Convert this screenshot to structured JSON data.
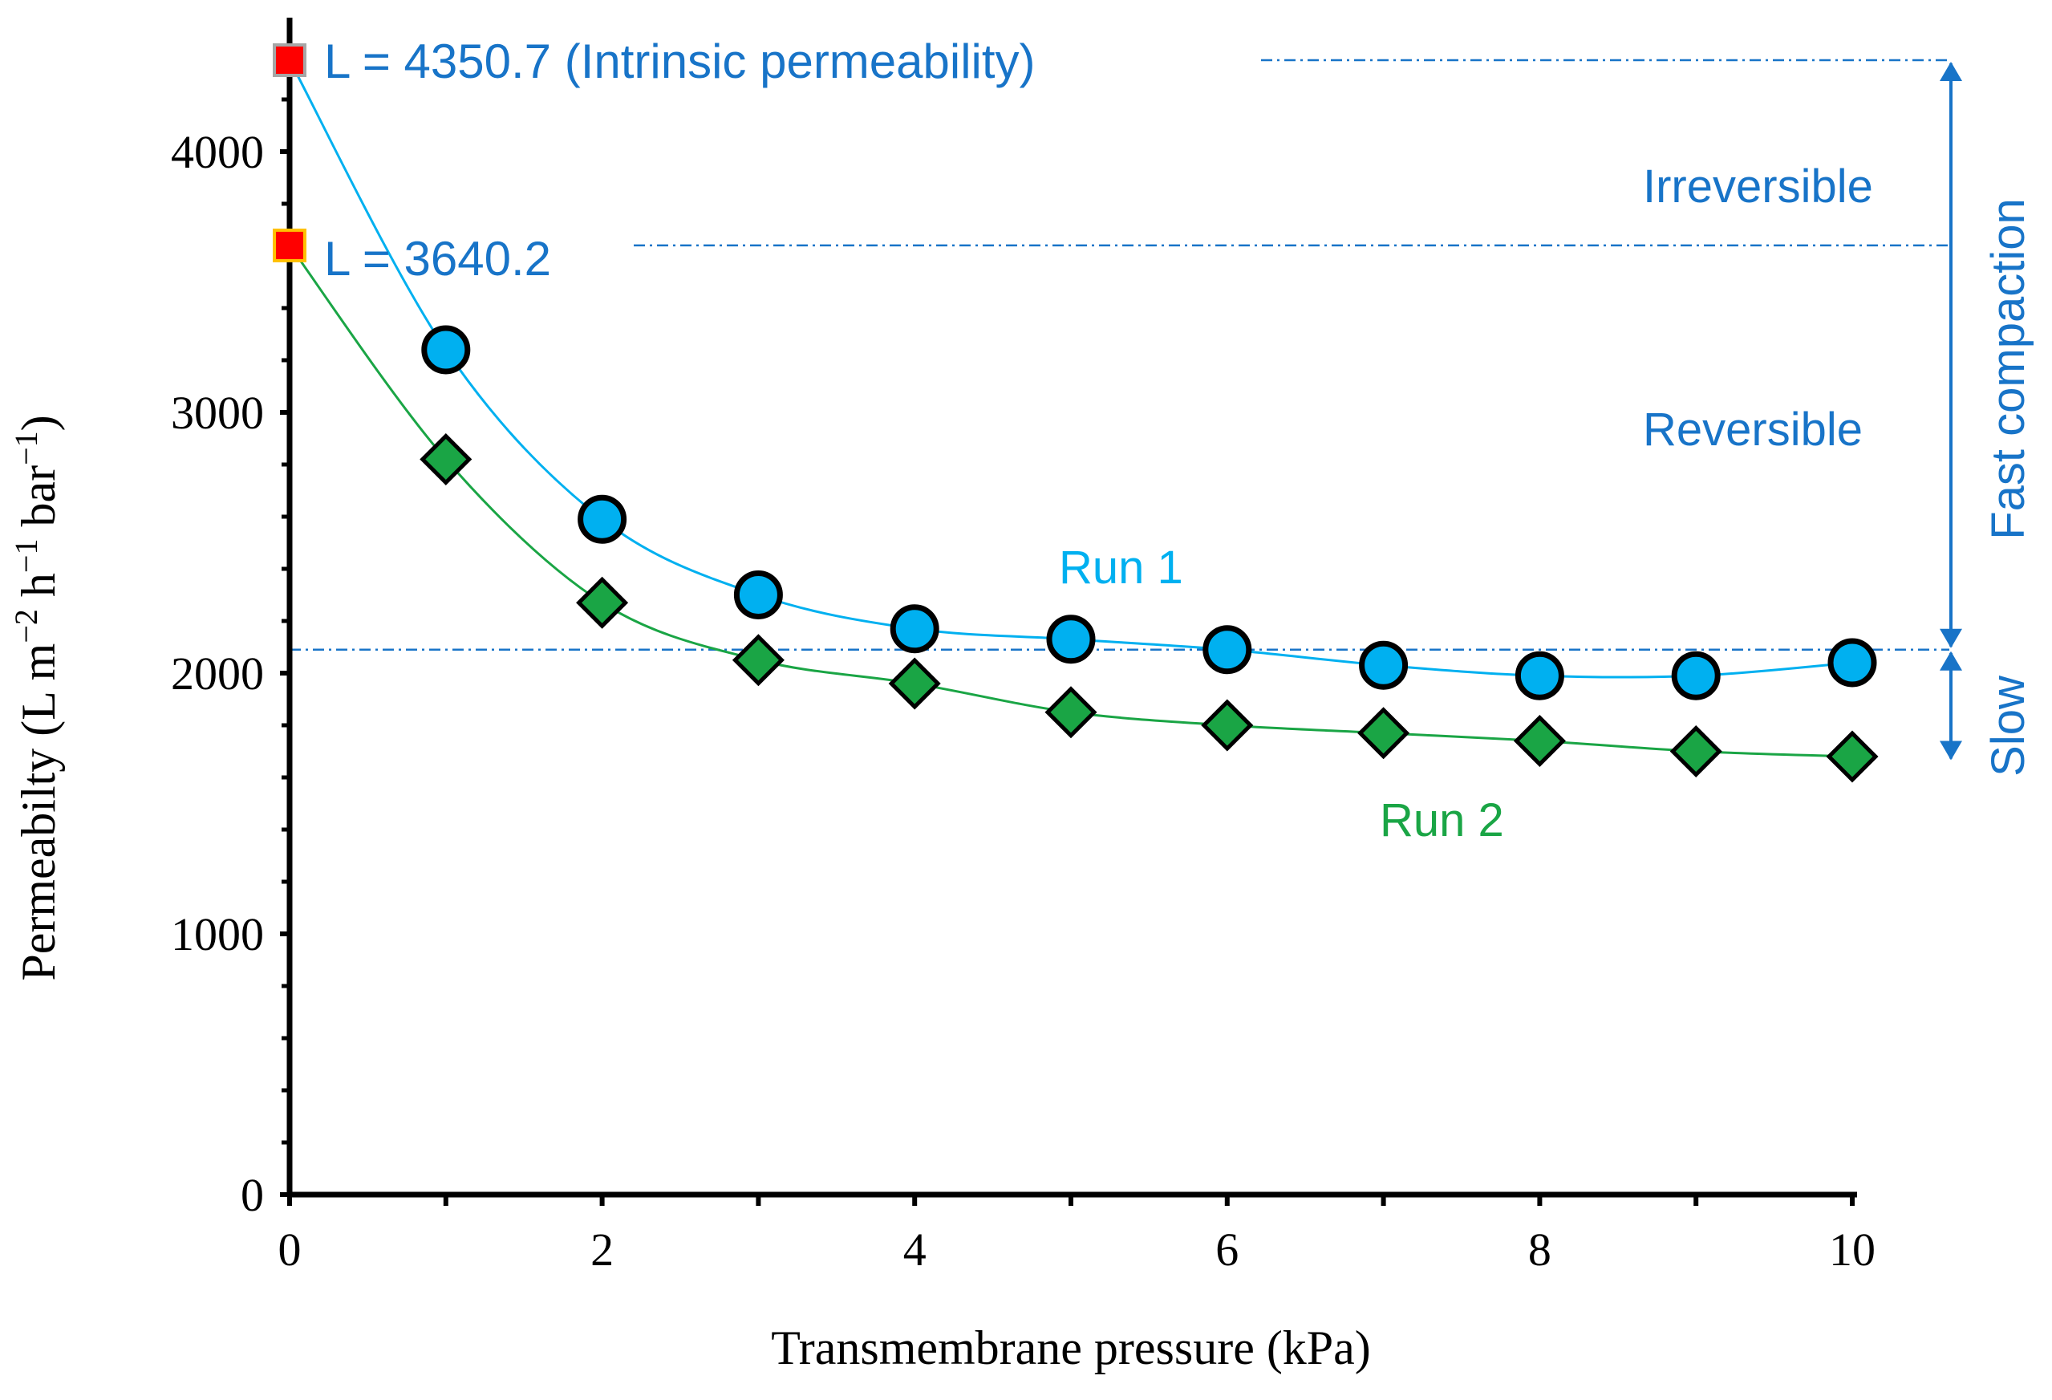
{
  "chart_data": {
    "type": "scatter",
    "title": "",
    "xlabel": "Transmembrane pressure (kPa)",
    "ylabel_parts": [
      "Permeabilty (L m",
      "−2",
      " h",
      "−1",
      " bar",
      "−1",
      ")"
    ],
    "xlim": [
      0,
      10
    ],
    "ylim": [
      0,
      4350.7
    ],
    "x_ticks": [
      0,
      2,
      4,
      6,
      8,
      10
    ],
    "y_ticks": [
      0,
      1000,
      2000,
      3000,
      4000
    ],
    "grid": false,
    "series": [
      {
        "name": "Run 1",
        "marker": "circle",
        "color": "#00B0F0",
        "x": [
          1,
          2,
          3,
          4,
          5,
          6,
          7,
          8,
          9,
          10
        ],
        "y": [
          3240,
          2590,
          2300,
          2170,
          2130,
          2090,
          2030,
          1990,
          1990,
          2040
        ]
      },
      {
        "name": "Run 2",
        "marker": "diamond",
        "color": "#1AA545",
        "x": [
          1,
          2,
          3,
          4,
          5,
          6,
          7,
          8,
          9,
          10
        ],
        "y": [
          2820,
          2270,
          2050,
          1960,
          1850,
          1800,
          1770,
          1740,
          1700,
          1680
        ]
      }
    ],
    "intercepts": [
      {
        "x": 0,
        "y": 4350.7,
        "label": "L = 4350.7 (Intrinsic permeability)"
      },
      {
        "x": 0,
        "y": 3640.2,
        "label": "L = 3640.2"
      }
    ],
    "reference_lines_y": [
      4350.7,
      3640.2,
      2090
    ],
    "annotations": {
      "run1_label": "Run 1",
      "run2_label": "Run 2",
      "irreversible": "Irreversible",
      "reversible": "Reversible",
      "fast_compaction": "Fast compaction",
      "slow": "Slow"
    },
    "brackets": [
      {
        "name": "fast",
        "from": 4350.7,
        "to": 2090
      },
      {
        "name": "slow",
        "from": 2090,
        "to": 1660
      }
    ]
  },
  "colors": {
    "annotation_blue": "#1874C8",
    "run1_blue": "#00B0F0",
    "run2_green": "#1AA545",
    "intercept_red": "#FF0000",
    "axis": "#000000"
  }
}
